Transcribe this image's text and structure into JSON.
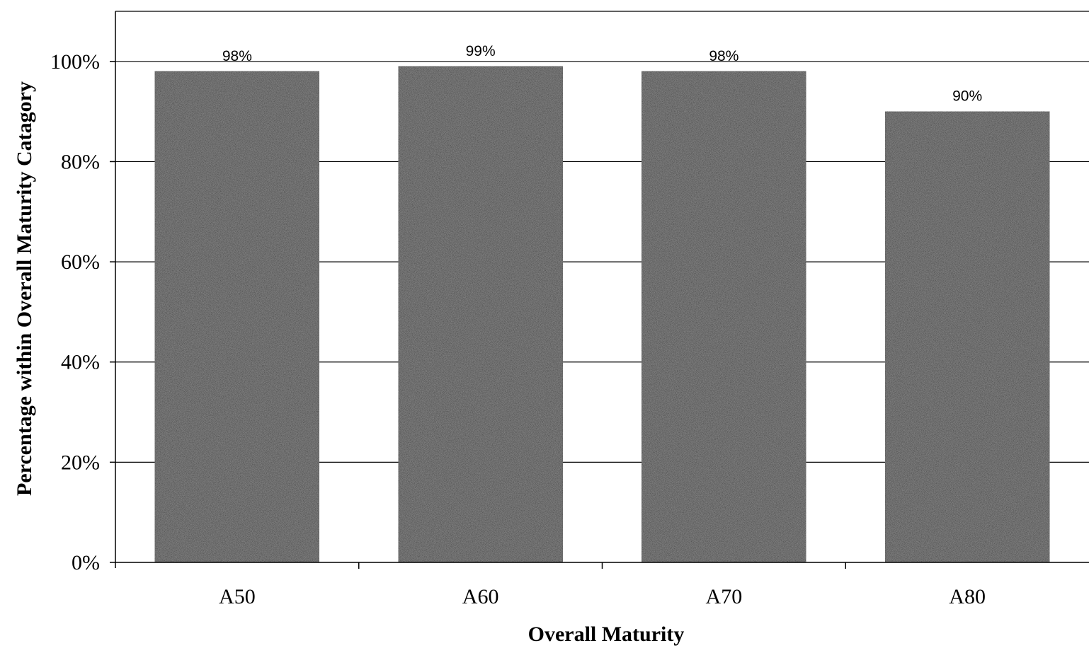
{
  "chart_data": {
    "type": "bar",
    "title": "",
    "xlabel": "Overall Maturity",
    "ylabel": "Percentage within Overall Maturity Catagory",
    "categories": [
      "A50",
      "A60",
      "A70",
      "A80"
    ],
    "values": [
      98,
      99,
      98,
      90
    ],
    "data_labels": [
      "98%",
      "99%",
      "98%",
      "90%"
    ],
    "ylim": [
      0,
      110
    ],
    "yticks": [
      0,
      20,
      40,
      60,
      80,
      100
    ],
    "ytick_labels": [
      "0%",
      "20%",
      "40%",
      "60%",
      "80%",
      "100%"
    ],
    "grid": true,
    "legend": "none",
    "colors": {
      "bar": "#1e1e1e",
      "grid": "#000000",
      "axis": "#000000"
    }
  }
}
